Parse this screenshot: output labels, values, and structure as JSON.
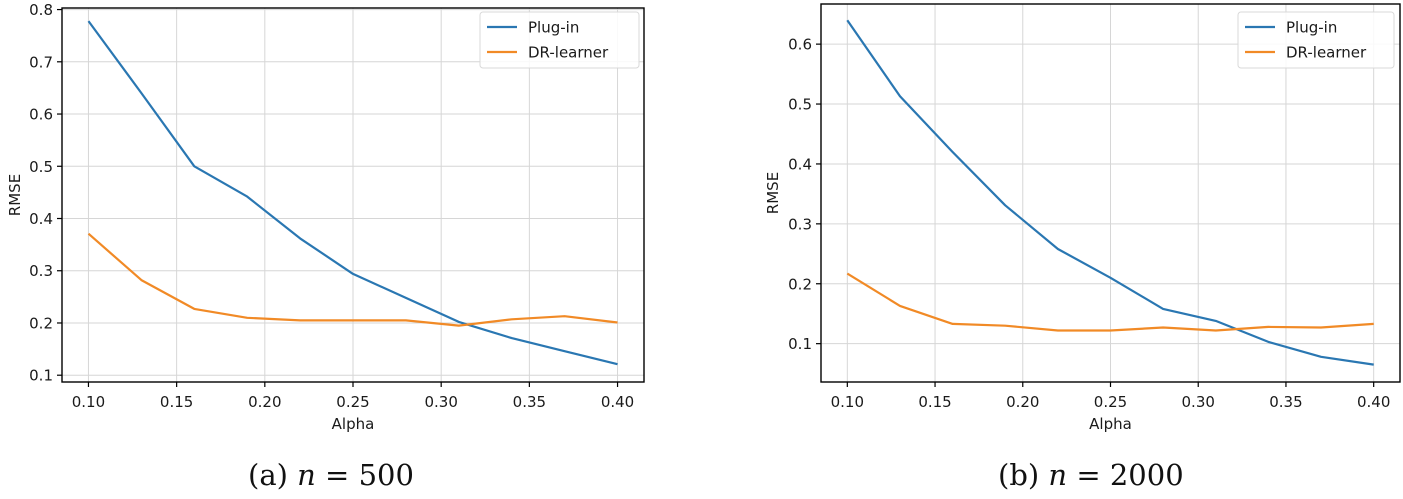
{
  "figure": {
    "captions": [
      {
        "label": "(a)",
        "math_var": "n",
        "math_op": "=",
        "math_val": "500"
      },
      {
        "label": "(b)",
        "math_var": "n",
        "math_op": "=",
        "math_val": "2000"
      }
    ]
  },
  "colors": {
    "plugin": "#2a77b2",
    "dr": "#f18a26",
    "grid": "#d6d6d6",
    "axis": "#000000"
  },
  "chart_data": [
    {
      "type": "line",
      "title": "",
      "caption": "(a) n = 500",
      "xlabel": "Alpha",
      "ylabel": "RMSE",
      "x": [
        0.1,
        0.13,
        0.16,
        0.19,
        0.22,
        0.25,
        0.28,
        0.31,
        0.34,
        0.37,
        0.4
      ],
      "xticks": [
        "0.10",
        "0.15",
        "0.20",
        "0.25",
        "0.30",
        "0.35",
        "0.40"
      ],
      "yticks": [
        "0.1",
        "0.2",
        "0.3",
        "0.4",
        "0.5",
        "0.6",
        "0.7",
        "0.8"
      ],
      "xlim": [
        0.085,
        0.415
      ],
      "ylim": [
        0.087,
        0.803
      ],
      "grid": true,
      "legend_position": "upper right",
      "series": [
        {
          "name": "Plug-in",
          "color": "#2a77b2",
          "values": [
            0.778,
            0.64,
            0.5,
            0.442,
            0.362,
            0.294,
            0.248,
            0.202,
            0.171,
            0.146,
            0.121
          ]
        },
        {
          "name": "DR-learner",
          "color": "#f18a26",
          "values": [
            0.371,
            0.282,
            0.227,
            0.21,
            0.205,
            0.205,
            0.205,
            0.195,
            0.207,
            0.213,
            0.201
          ]
        }
      ]
    },
    {
      "type": "line",
      "title": "",
      "caption": "(b) n = 2000",
      "xlabel": "Alpha",
      "ylabel": "RMSE",
      "x": [
        0.1,
        0.13,
        0.16,
        0.19,
        0.22,
        0.25,
        0.28,
        0.31,
        0.34,
        0.37,
        0.4
      ],
      "xticks": [
        "0.10",
        "0.15",
        "0.20",
        "0.25",
        "0.30",
        "0.35",
        "0.40"
      ],
      "yticks": [
        "0.1",
        "0.2",
        "0.3",
        "0.4",
        "0.5",
        "0.6"
      ],
      "xlim": [
        0.085,
        0.415
      ],
      "ylim": [
        0.036,
        0.667
      ],
      "grid": true,
      "legend_position": "upper right",
      "series": [
        {
          "name": "Plug-in",
          "color": "#2a77b2",
          "values": [
            0.64,
            0.513,
            0.42,
            0.331,
            0.258,
            0.21,
            0.158,
            0.138,
            0.103,
            0.078,
            0.065
          ]
        },
        {
          "name": "DR-learner",
          "color": "#f18a26",
          "values": [
            0.217,
            0.163,
            0.133,
            0.13,
            0.122,
            0.122,
            0.127,
            0.122,
            0.128,
            0.127,
            0.133
          ]
        }
      ]
    }
  ]
}
